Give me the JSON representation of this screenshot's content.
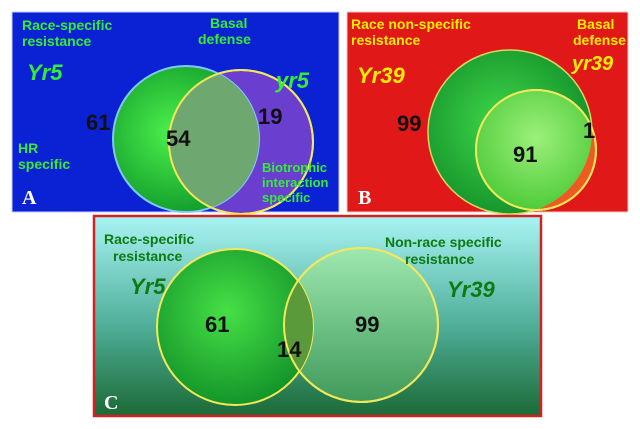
{
  "panels": {
    "A": {
      "letter": "A",
      "left_label": [
        "Race-specific",
        "resistance"
      ],
      "right_label": [
        "Basal",
        "defense"
      ],
      "left_gene": "Yr5",
      "right_gene": "yr5",
      "left_count": "61",
      "overlap_count": "54",
      "right_count": "19",
      "bottom_left_label": [
        "HR",
        "specific"
      ],
      "bottom_right_label": [
        "Biotrophic",
        "interaction",
        "specific"
      ],
      "colors": {
        "background": "#0b1fd0",
        "label": "#33ee33",
        "gene_left": "#33ee33",
        "gene_right": "#33ee33"
      }
    },
    "B": {
      "letter": "B",
      "left_label": [
        "Race non-specific",
        "resistance"
      ],
      "right_label": [
        "Basal",
        "defense"
      ],
      "left_gene": "Yr39",
      "right_gene": "yr39",
      "left_count": "99",
      "overlap_count": "91",
      "right_count": "1",
      "colors": {
        "background": "#e01818",
        "label": "#ffee00",
        "gene": "#ffee00"
      }
    },
    "C": {
      "letter": "C",
      "left_label": [
        "Race-specific",
        "resistance"
      ],
      "right_label": [
        "Non-race specific",
        "resistance"
      ],
      "left_gene": "Yr5",
      "right_gene": "Yr39",
      "left_count": "61",
      "overlap_count": "14",
      "right_count": "99",
      "colors": {
        "background_top": "#a8f4f4",
        "background_bottom": "#1e6f32",
        "border": "#d42020",
        "label": "#0e7a10",
        "gene": "#0e7a10"
      }
    }
  }
}
